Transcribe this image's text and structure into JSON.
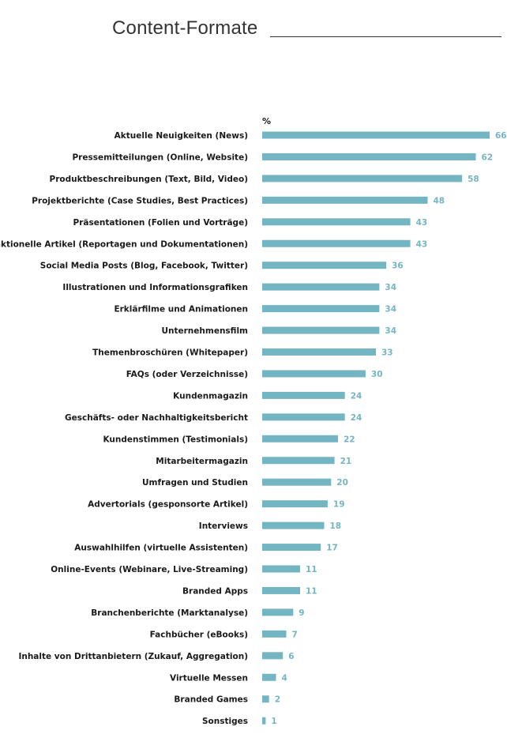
{
  "page": {
    "title": "Content-Formate"
  },
  "colors": {
    "bar": "#74b5c3",
    "value_text": "#74b5c3",
    "label_text": "#1a1a1a",
    "title": "#333333"
  },
  "chart_data": {
    "type": "bar",
    "orientation": "horizontal",
    "unit_label": "%",
    "title": "",
    "xlabel": "",
    "ylabel": "",
    "xlim": [
      0,
      66
    ],
    "grid": false,
    "legend": "none",
    "categories": [
      "Aktuelle Neuigkeiten (News)",
      "Pressemitteilungen (Online, Website)",
      "Produktbeschreibungen (Text, Bild, Video)",
      "Projektberichte (Case Studies, Best Practices)",
      "Präsentationen (Folien und Vorträge)",
      "Redaktionelle Artikel (Reportagen und Dokumentationen)",
      "Social Media Posts (Blog, Facebook, Twitter)",
      "Illustrationen und Informationsgrafiken",
      "Erklärfilme und Animationen",
      "Unternehmensfilm",
      "Themenbroschüren (Whitepaper)",
      "FAQs (oder Verzeichnisse)",
      "Kundenmagazin",
      "Geschäfts- oder Nachhaltigkeitsbericht",
      "Kundenstimmen (Testimonials)",
      "Mitarbeitermagazin",
      "Umfragen und Studien",
      "Advertorials (gesponsorte Artikel)",
      "Interviews",
      "Auswahlhilfen (virtuelle Assistenten)",
      "Online-Events (Webinare, Live-Streaming)",
      "Branded Apps",
      "Branchenberichte (Marktanalyse)",
      "Fachbücher (eBooks)",
      "Inhalte von Drittanbietern (Zukauf, Aggregation)",
      "Virtuelle Messen",
      "Branded Games",
      "Sonstiges"
    ],
    "values": [
      66,
      62,
      58,
      48,
      43,
      43,
      36,
      34,
      34,
      34,
      33,
      30,
      24,
      24,
      22,
      21,
      20,
      19,
      18,
      17,
      11,
      11,
      9,
      7,
      6,
      4,
      2,
      1
    ]
  }
}
